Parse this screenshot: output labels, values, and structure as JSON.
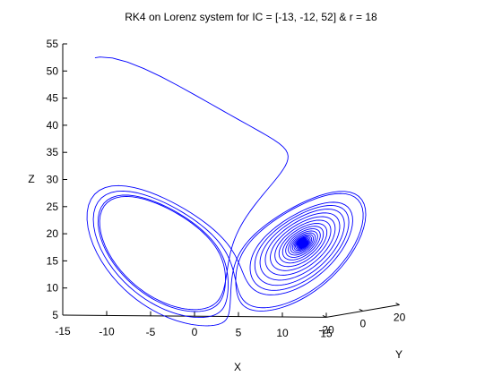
{
  "chart_data": {
    "type": "line",
    "projection": "3d",
    "title": "RK4 on Lorenz system for IC = [-13, -12, 52] & r = 18",
    "xlabel": "X",
    "ylabel": "Y",
    "zlabel": "Z",
    "xlim": [
      -15,
      15
    ],
    "ylim": [
      -20,
      20
    ],
    "zlim": [
      5,
      55
    ],
    "x_ticks": [
      "-15",
      "-10",
      "-5",
      "0",
      "5",
      "10",
      "15"
    ],
    "y_ticks": [
      "-20",
      "0",
      "20"
    ],
    "z_ticks": [
      "5",
      "10",
      "15",
      "20",
      "25",
      "30",
      "35",
      "40",
      "45",
      "50",
      "55"
    ],
    "grid": false,
    "legend": "none",
    "initial_condition": [
      -13,
      -12,
      52
    ],
    "r": 18,
    "series": [
      {
        "color": "#0000ff"
      }
    ]
  }
}
